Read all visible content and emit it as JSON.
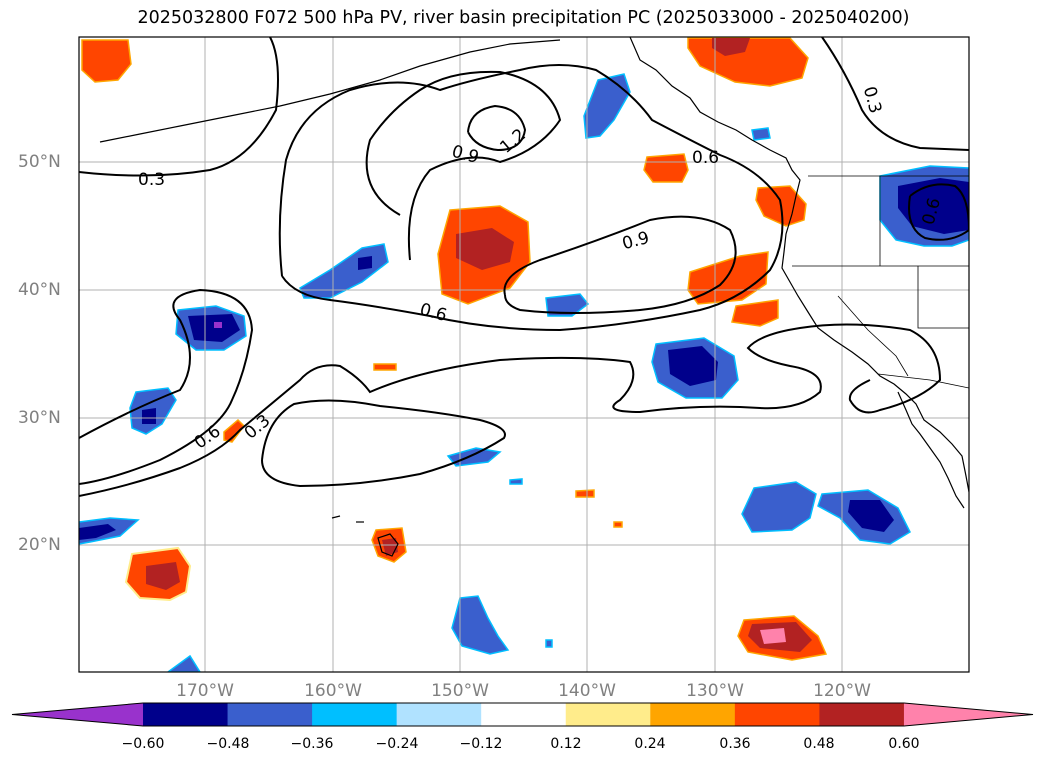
{
  "title": "2025032800 F072 500 hPa PV, river basin precipitation PC (2025033000 - 2025040200)",
  "lat_labels": [
    "50°N",
    "40°N",
    "30°N",
    "20°N"
  ],
  "lon_labels": [
    "170°W",
    "160°W",
    "150°W",
    "140°W",
    "130°W",
    "120°W"
  ],
  "contour_labels": [
    "0.3",
    "0.3",
    "0.3",
    "0.6",
    "0.6",
    "0.6",
    "0.6",
    "0.9",
    "0.9",
    "1.2"
  ],
  "colorbar": {
    "ticks": [
      "−0.60",
      "−0.48",
      "−0.36",
      "−0.24",
      "−0.12",
      "0.12",
      "0.24",
      "0.36",
      "0.48",
      "0.60"
    ],
    "colors": [
      "#9932cc",
      "#00008b",
      "#3a5fcd",
      "#00bfff",
      "#b0e2ff",
      "#ffffff",
      "#ffec8b",
      "#ffa500",
      "#ff4500",
      "#b22222",
      "#ff82ab"
    ]
  }
}
